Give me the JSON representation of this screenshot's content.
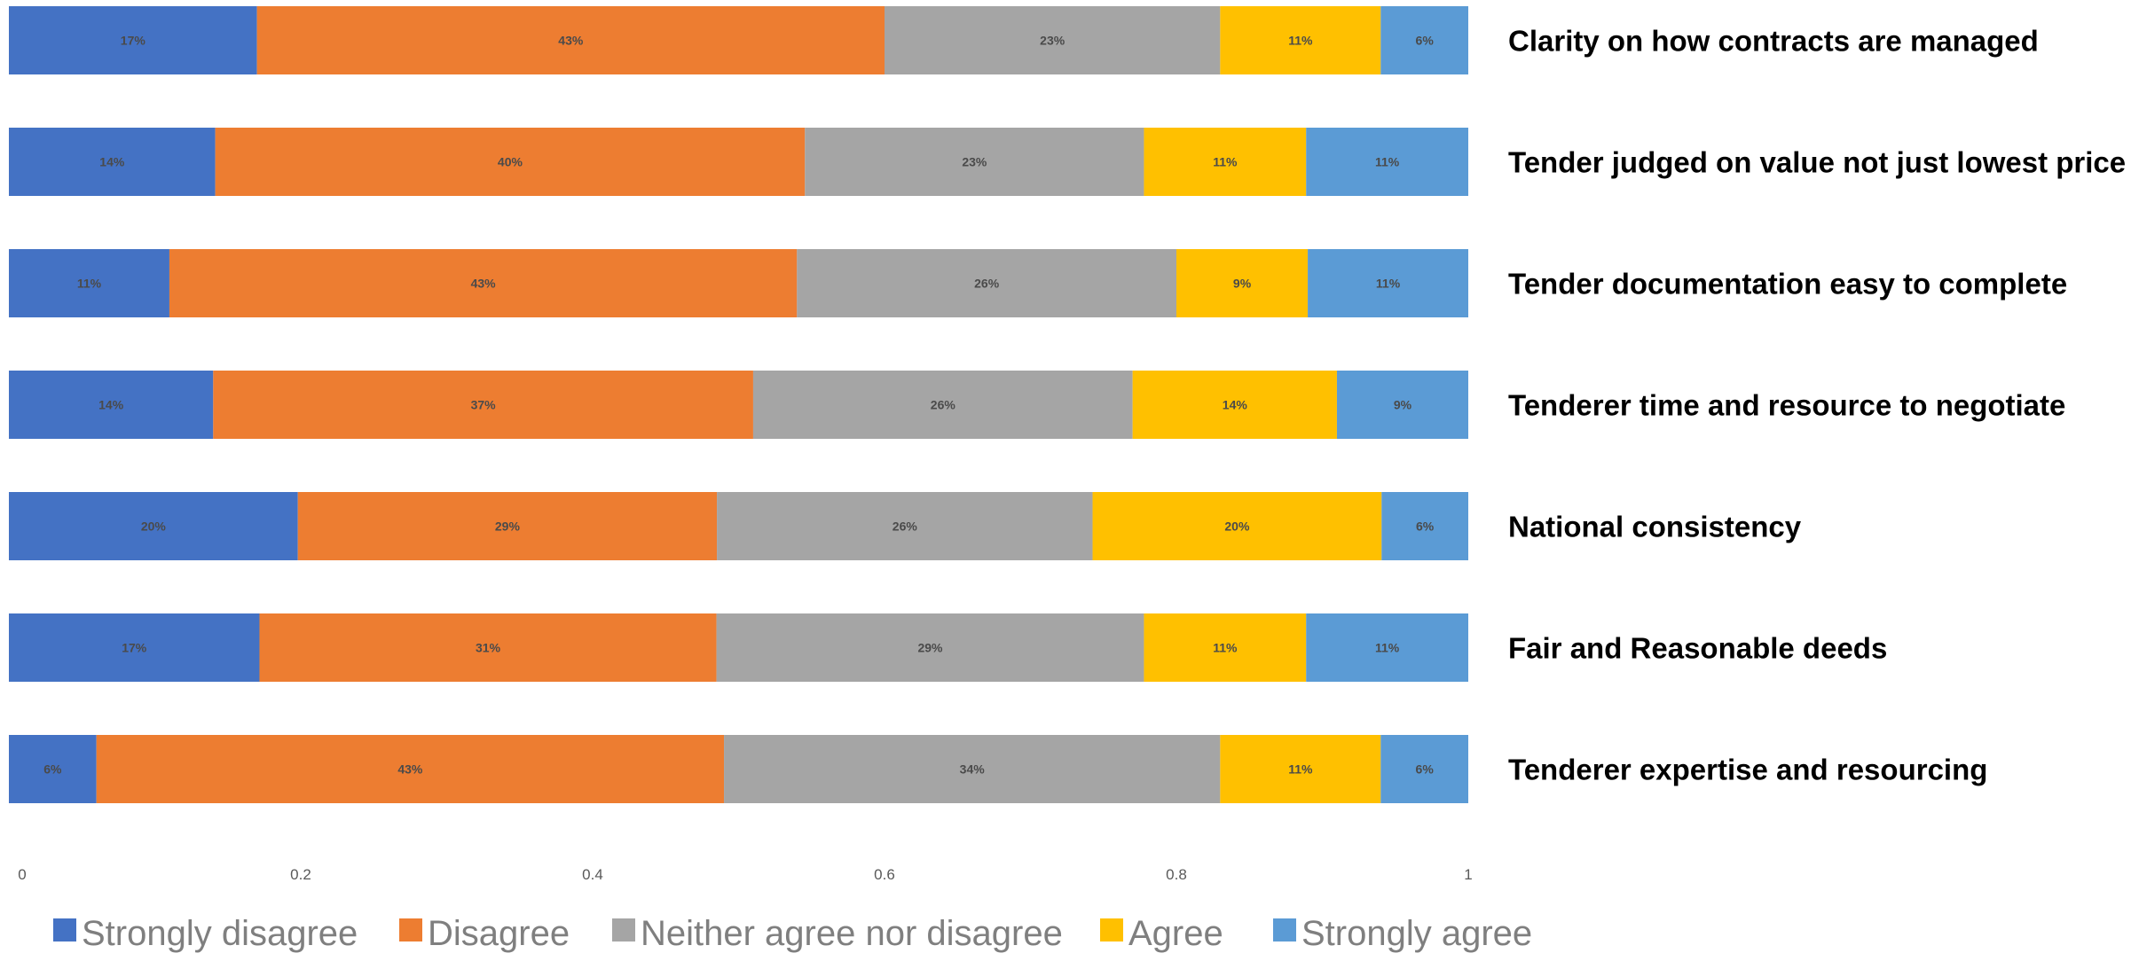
{
  "chart_data": {
    "type": "bar",
    "orientation": "horizontal",
    "stacked": true,
    "categories": [
      "Clarity on how contracts are managed",
      "Tender judged on value not just lowest price",
      "Tender documentation easy to complete",
      "Tenderer time and resource to negotiate",
      "National consistency",
      "Fair and Reasonable deeds",
      "Tenderer expertise and resourcing"
    ],
    "series": [
      {
        "name": "Strongly disagree",
        "color": "#4472c4",
        "values": [
          0.17,
          0.14,
          0.11,
          0.14,
          0.2,
          0.17,
          0.06
        ],
        "labels": [
          "17%",
          "14%",
          "11%",
          "14%",
          "20%",
          "17%",
          "6%"
        ]
      },
      {
        "name": "Disagree",
        "color": "#ed7d31",
        "values": [
          0.43,
          0.4,
          0.43,
          0.37,
          0.29,
          0.31,
          0.43
        ],
        "labels": [
          "43%",
          "40%",
          "43%",
          "37%",
          "29%",
          "31%",
          "43%"
        ]
      },
      {
        "name": "Neither agree nor disagree",
        "color": "#a5a5a5",
        "values": [
          0.23,
          0.23,
          0.26,
          0.26,
          0.26,
          0.29,
          0.34
        ],
        "labels": [
          "23%",
          "23%",
          "26%",
          "26%",
          "26%",
          "29%",
          "34%"
        ]
      },
      {
        "name": "Agree",
        "color": "#ffc000",
        "values": [
          0.11,
          0.11,
          0.09,
          0.14,
          0.2,
          0.11,
          0.11
        ],
        "labels": [
          "11%",
          "11%",
          "9%",
          "14%",
          "20%",
          "11%",
          "11%"
        ]
      },
      {
        "name": "Strongly agree",
        "color": "#5b9bd5",
        "values": [
          0.06,
          0.11,
          0.11,
          0.09,
          0.06,
          0.11,
          0.06
        ],
        "labels": [
          "6%",
          "11%",
          "11%",
          "9%",
          "6%",
          "11%",
          "6%"
        ]
      }
    ],
    "xticks": [
      "0",
      "0.2",
      "0.4",
      "0.6",
      "0.8",
      "1"
    ],
    "xlim": [
      0,
      1
    ],
    "legend_position": "bottom",
    "category_labels_position": "right",
    "grid": false
  }
}
